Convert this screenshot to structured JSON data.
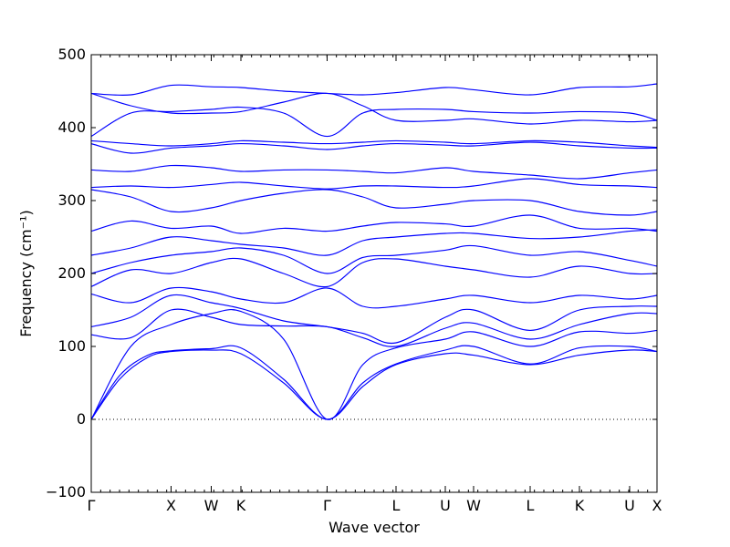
{
  "chart_data": {
    "type": "line",
    "title": "",
    "xlabel": "Wave vector",
    "ylabel": "Frequency (cm⁻¹)",
    "ylim": [
      -100,
      500
    ],
    "yticks": [
      -100,
      0,
      100,
      200,
      300,
      400,
      500
    ],
    "x_high_symmetry": [
      {
        "label": "Γ",
        "x": 0.0
      },
      {
        "label": "X",
        "x": 0.1411
      },
      {
        "label": "W",
        "x": 0.2121
      },
      {
        "label": "K",
        "x": 0.2645
      },
      {
        "label": "Γ",
        "x": 0.4169
      },
      {
        "label": "L",
        "x": 0.5387
      },
      {
        "label": "U",
        "x": 0.6258
      },
      {
        "label": "W",
        "x": 0.6758
      },
      {
        "label": "L",
        "x": 0.7758
      },
      {
        "label": "K",
        "x": 0.8629
      },
      {
        "label": "U",
        "x": 0.9516
      },
      {
        "label": "X",
        "x": 1.0
      }
    ],
    "zero_line": true,
    "line_color": "#0000ff",
    "series": [
      {
        "x": [
          0,
          0.05,
          0.1,
          0.1411,
          0.2121,
          0.2645,
          0.34,
          0.4169,
          0.48,
          0.5387,
          0.6258,
          0.6758,
          0.7758,
          0.8629,
          0.9516,
          1.0
        ],
        "y": [
          0,
          55,
          85,
          93,
          95,
          90,
          50,
          0,
          45,
          75,
          90,
          88,
          75,
          88,
          95,
          93
        ]
      },
      {
        "x": [
          0,
          0.05,
          0.1,
          0.1411,
          0.2121,
          0.2645,
          0.34,
          0.4169,
          0.48,
          0.5387,
          0.6258,
          0.6758,
          0.7758,
          0.8629,
          0.9516,
          1.0
        ],
        "y": [
          0,
          60,
          88,
          94,
          97,
          98,
          55,
          0,
          50,
          76,
          95,
          100,
          76,
          98,
          100,
          93
        ]
      },
      {
        "x": [
          0,
          0.07,
          0.1411,
          0.2121,
          0.2645,
          0.34,
          0.4169,
          0.48,
          0.5387,
          0.6258,
          0.6758,
          0.7758,
          0.8629,
          0.9516,
          1.0
        ],
        "y": [
          0,
          100,
          130,
          145,
          148,
          110,
          0,
          75,
          98,
          110,
          120,
          100,
          120,
          118,
          122
        ]
      },
      {
        "x": [
          0,
          0.07,
          0.1411,
          0.2121,
          0.2645,
          0.34,
          0.4169,
          0.48,
          0.5387,
          0.6258,
          0.6758,
          0.7758,
          0.8629,
          0.9516,
          1.0
        ],
        "y": [
          116,
          112,
          150,
          140,
          130,
          128,
          127,
          112,
          100,
          125,
          132,
          110,
          130,
          145,
          145
        ]
      },
      {
        "x": [
          0,
          0.07,
          0.1411,
          0.2121,
          0.2645,
          0.34,
          0.4169,
          0.48,
          0.5387,
          0.6258,
          0.6758,
          0.7758,
          0.8629,
          0.9516,
          1.0
        ],
        "y": [
          127,
          140,
          170,
          160,
          152,
          135,
          127,
          118,
          105,
          140,
          150,
          122,
          150,
          155,
          155
        ]
      },
      {
        "x": [
          0,
          0.07,
          0.1411,
          0.2121,
          0.2645,
          0.34,
          0.4169,
          0.48,
          0.5387,
          0.6258,
          0.6758,
          0.7758,
          0.8629,
          0.9516,
          1.0
        ],
        "y": [
          172,
          160,
          180,
          175,
          165,
          160,
          180,
          155,
          155,
          165,
          170,
          160,
          170,
          165,
          170
        ]
      },
      {
        "x": [
          0,
          0.07,
          0.1411,
          0.2121,
          0.2645,
          0.34,
          0.4169,
          0.48,
          0.5387,
          0.6258,
          0.6758,
          0.7758,
          0.8629,
          0.9516,
          1.0
        ],
        "y": [
          182,
          205,
          200,
          215,
          220,
          200,
          182,
          215,
          220,
          210,
          205,
          195,
          210,
          200,
          200
        ]
      },
      {
        "x": [
          0,
          0.07,
          0.1411,
          0.2121,
          0.2645,
          0.34,
          0.4169,
          0.48,
          0.5387,
          0.6258,
          0.6758,
          0.7758,
          0.8629,
          0.9516,
          1.0
        ],
        "y": [
          200,
          215,
          225,
          230,
          235,
          225,
          200,
          222,
          225,
          232,
          238,
          225,
          230,
          218,
          210
        ]
      },
      {
        "x": [
          0,
          0.07,
          0.1411,
          0.2121,
          0.2645,
          0.34,
          0.4169,
          0.48,
          0.5387,
          0.6258,
          0.6758,
          0.7758,
          0.8629,
          0.9516,
          1.0
        ],
        "y": [
          225,
          235,
          250,
          245,
          240,
          235,
          225,
          245,
          250,
          255,
          255,
          248,
          250,
          258,
          260
        ]
      },
      {
        "x": [
          0,
          0.07,
          0.1411,
          0.2121,
          0.2645,
          0.34,
          0.4169,
          0.48,
          0.5387,
          0.6258,
          0.6758,
          0.7758,
          0.8629,
          0.9516,
          1.0
        ],
        "y": [
          258,
          272,
          262,
          265,
          255,
          262,
          258,
          265,
          270,
          268,
          265,
          280,
          262,
          262,
          258
        ]
      },
      {
        "x": [
          0,
          0.07,
          0.1411,
          0.2121,
          0.2645,
          0.34,
          0.4169,
          0.48,
          0.5387,
          0.6258,
          0.6758,
          0.7758,
          0.8629,
          0.9516,
          1.0
        ],
        "y": [
          315,
          305,
          285,
          290,
          300,
          310,
          315,
          305,
          290,
          295,
          300,
          300,
          285,
          280,
          285
        ]
      },
      {
        "x": [
          0,
          0.07,
          0.1411,
          0.2121,
          0.2645,
          0.34,
          0.4169,
          0.48,
          0.5387,
          0.6258,
          0.6758,
          0.7758,
          0.8629,
          0.9516,
          1.0
        ],
        "y": [
          318,
          320,
          318,
          322,
          325,
          320,
          316,
          320,
          320,
          318,
          320,
          330,
          322,
          320,
          318
        ]
      },
      {
        "x": [
          0,
          0.07,
          0.1411,
          0.2121,
          0.2645,
          0.34,
          0.4169,
          0.48,
          0.5387,
          0.6258,
          0.6758,
          0.7758,
          0.8629,
          0.9516,
          1.0
        ],
        "y": [
          342,
          340,
          348,
          345,
          340,
          342,
          342,
          340,
          338,
          345,
          340,
          335,
          330,
          338,
          342
        ]
      },
      {
        "x": [
          0,
          0.07,
          0.1411,
          0.2121,
          0.2645,
          0.34,
          0.4169,
          0.48,
          0.5387,
          0.6258,
          0.6758,
          0.7758,
          0.8629,
          0.9516,
          1.0
        ],
        "y": [
          378,
          365,
          372,
          375,
          378,
          375,
          370,
          375,
          378,
          376,
          375,
          380,
          375,
          372,
          372
        ]
      },
      {
        "x": [
          0,
          0.07,
          0.1411,
          0.2121,
          0.2645,
          0.34,
          0.4169,
          0.48,
          0.5387,
          0.6258,
          0.6758,
          0.7758,
          0.8629,
          0.9516,
          1.0
        ],
        "y": [
          382,
          378,
          375,
          378,
          382,
          380,
          378,
          380,
          382,
          380,
          378,
          382,
          380,
          375,
          373
        ]
      },
      {
        "x": [
          0,
          0.07,
          0.1411,
          0.2121,
          0.2645,
          0.34,
          0.4169,
          0.48,
          0.5387,
          0.6258,
          0.6758,
          0.7758,
          0.8629,
          0.9516,
          1.0
        ],
        "y": [
          388,
          420,
          422,
          425,
          428,
          420,
          388,
          420,
          425,
          425,
          422,
          420,
          422,
          420,
          410
        ]
      },
      {
        "x": [
          0,
          0.07,
          0.1411,
          0.2121,
          0.2645,
          0.34,
          0.4169,
          0.48,
          0.5387,
          0.6258,
          0.6758,
          0.7758,
          0.8629,
          0.9516,
          1.0
        ],
        "y": [
          447,
          430,
          420,
          420,
          422,
          435,
          447,
          430,
          410,
          410,
          412,
          405,
          410,
          408,
          410
        ]
      },
      {
        "x": [
          0,
          0.07,
          0.1411,
          0.2121,
          0.2645,
          0.34,
          0.4169,
          0.48,
          0.5387,
          0.6258,
          0.6758,
          0.7758,
          0.8629,
          0.9516,
          1.0
        ],
        "y": [
          447,
          445,
          458,
          456,
          455,
          450,
          447,
          445,
          448,
          455,
          452,
          445,
          455,
          456,
          460
        ]
      }
    ]
  }
}
